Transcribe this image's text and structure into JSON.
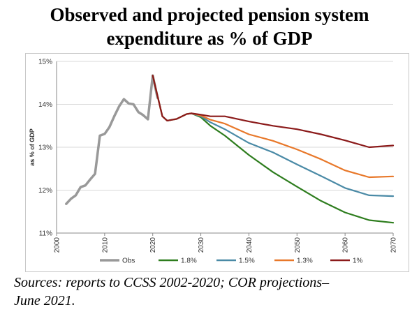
{
  "title_line1": "Observed and projected pension system",
  "title_line2": "expenditure as % of GDP",
  "source_line1": "Sources: reports to CCSS 2002-2020; COR projections–",
  "source_line2": "June 2021.",
  "chart_data": {
    "type": "line",
    "title": "Observed and projected pension system expenditure as % of GDP",
    "xlabel": "",
    "ylabel": "as % of GDP",
    "xlim": [
      2000,
      2070
    ],
    "ylim": [
      11,
      15
    ],
    "xticks": [
      "2000",
      "2010",
      "2020",
      "2030",
      "2040",
      "2050",
      "2060",
      "2070"
    ],
    "yticks": [
      "11%",
      "12%",
      "13%",
      "14%",
      "15%"
    ],
    "grid": "horizontal",
    "legend": "bottom",
    "series": [
      {
        "name": "Obs",
        "color": "#999999",
        "x": [
          2002,
          2003,
          2004,
          2005,
          2006,
          2007,
          2008,
          2009,
          2010,
          2011,
          2012,
          2013,
          2014,
          2015,
          2016,
          2017,
          2018,
          2019,
          2020,
          2021
        ],
        "y": [
          11.68,
          11.8,
          11.88,
          12.07,
          12.11,
          12.25,
          12.38,
          13.27,
          13.31,
          13.47,
          13.72,
          13.95,
          14.12,
          14.02,
          14.0,
          13.82,
          13.75,
          13.65,
          14.67,
          14.15
        ]
      },
      {
        "name": "1.8%",
        "color": "#2e7d1e",
        "x": [
          2020,
          2022,
          2023,
          2025,
          2027,
          2028,
          2030,
          2032,
          2035,
          2040,
          2045,
          2050,
          2055,
          2060,
          2065,
          2070
        ],
        "y": [
          14.67,
          13.72,
          13.62,
          13.66,
          13.77,
          13.79,
          13.7,
          13.5,
          13.27,
          12.82,
          12.42,
          12.08,
          11.75,
          11.48,
          11.3,
          11.24
        ]
      },
      {
        "name": "1.5%",
        "color": "#4a8aa6",
        "x": [
          2020,
          2022,
          2023,
          2025,
          2027,
          2028,
          2030,
          2032,
          2035,
          2040,
          2045,
          2050,
          2055,
          2060,
          2065,
          2070
        ],
        "y": [
          14.67,
          13.72,
          13.62,
          13.66,
          13.77,
          13.79,
          13.72,
          13.58,
          13.42,
          13.1,
          12.88,
          12.6,
          12.33,
          12.05,
          11.88,
          11.86
        ]
      },
      {
        "name": "1.3%",
        "color": "#e8782a",
        "x": [
          2020,
          2022,
          2023,
          2025,
          2027,
          2028,
          2030,
          2032,
          2035,
          2040,
          2045,
          2050,
          2055,
          2060,
          2065,
          2070
        ],
        "y": [
          14.67,
          13.72,
          13.62,
          13.66,
          13.77,
          13.79,
          13.74,
          13.64,
          13.55,
          13.3,
          13.15,
          12.95,
          12.72,
          12.46,
          12.3,
          12.32
        ]
      },
      {
        "name": "1%",
        "color": "#8b1a1a",
        "x": [
          2020,
          2022,
          2023,
          2025,
          2027,
          2028,
          2030,
          2032,
          2035,
          2040,
          2045,
          2050,
          2055,
          2060,
          2065,
          2070
        ],
        "y": [
          14.67,
          13.72,
          13.62,
          13.66,
          13.77,
          13.79,
          13.76,
          13.72,
          13.72,
          13.6,
          13.5,
          13.42,
          13.3,
          13.16,
          13.0,
          13.04
        ]
      }
    ]
  }
}
